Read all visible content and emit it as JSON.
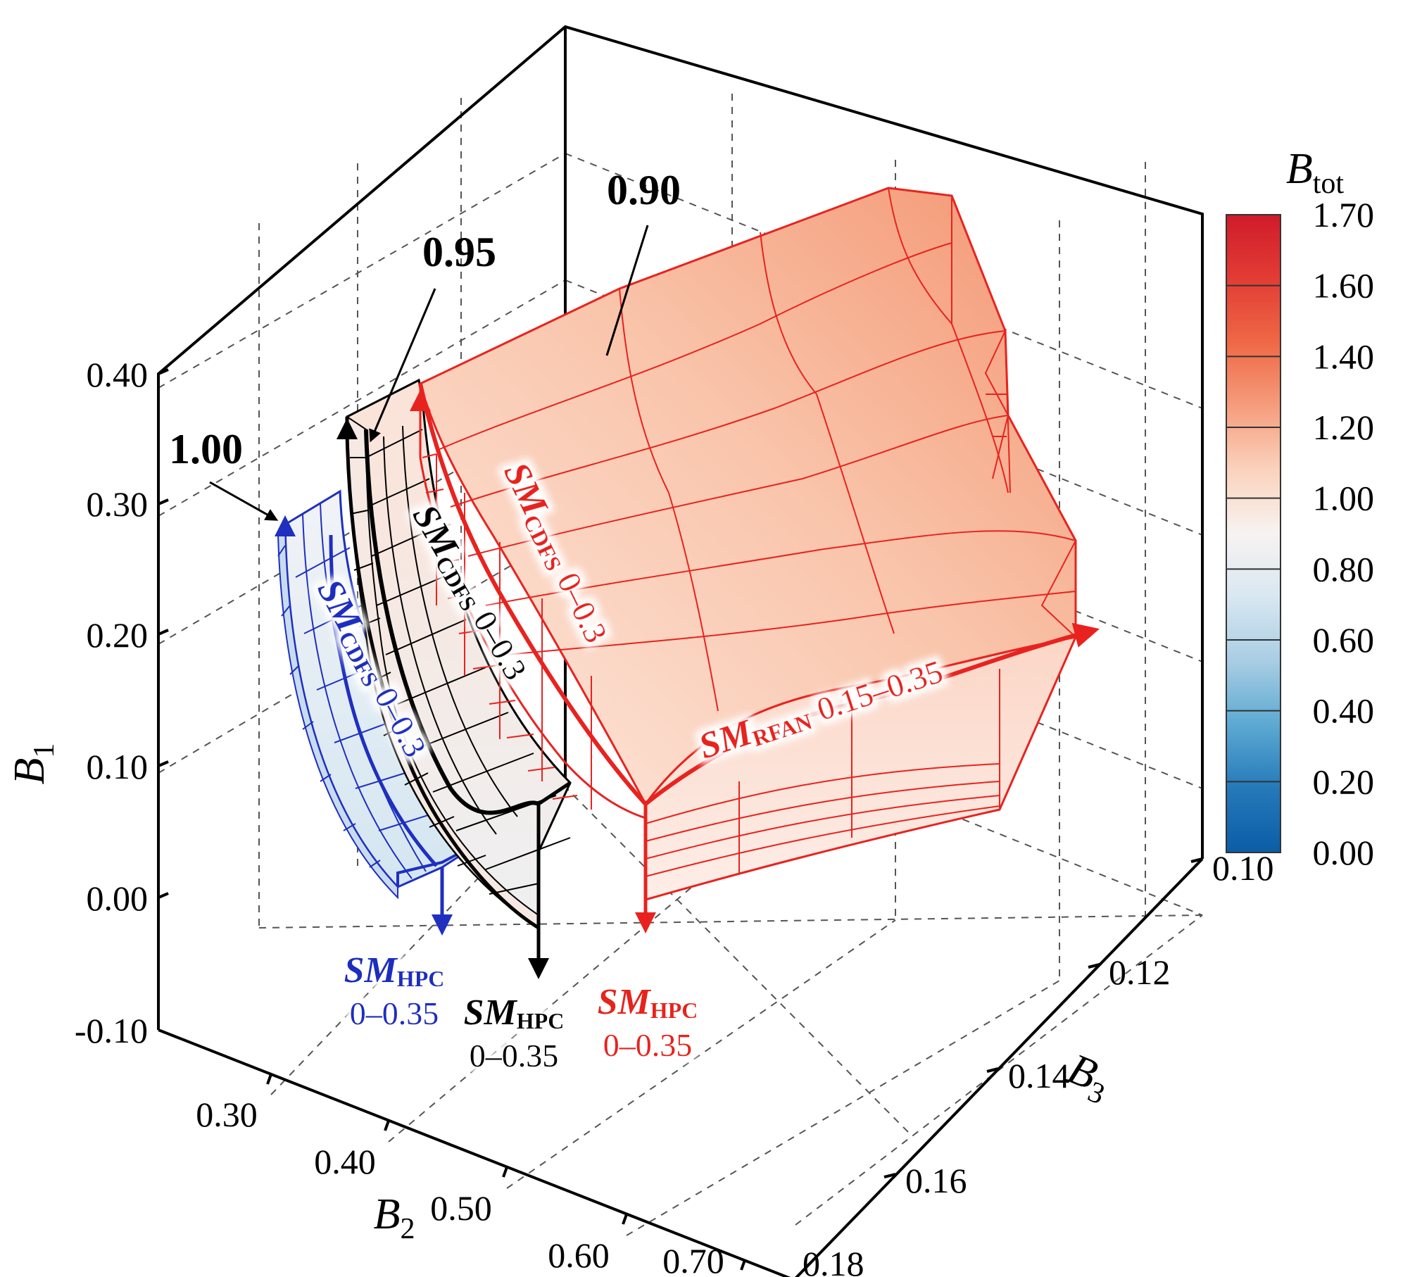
{
  "chart_data": {
    "type": "surface3d",
    "title": "",
    "axes": {
      "x": {
        "label": "B",
        "subscript": "2",
        "ticks": [
          "0.30",
          "0.40",
          "0.50",
          "0.60",
          "0.70"
        ]
      },
      "y": {
        "label": "B",
        "subscript": "3",
        "ticks": [
          "0.10",
          "0.12",
          "0.14",
          "0.16",
          "0.18"
        ]
      },
      "z": {
        "label": "B",
        "subscript": "1",
        "ticks": [
          "-0.10",
          "0.00",
          "0.10",
          "0.20",
          "0.30",
          "0.40"
        ]
      }
    },
    "colorbar": {
      "label": "B",
      "subscript": "tot",
      "ticks": [
        "1.70",
        "1.60",
        "1.40",
        "1.20",
        "1.00",
        "0.80",
        "0.60",
        "0.40",
        "0.20",
        "0.00"
      ],
      "colors": [
        "#d01b2a",
        "#e23c35",
        "#ef6845",
        "#f59d7d",
        "#fbd2bd",
        "#f7f3f1",
        "#d8e7f1",
        "#a9cde4",
        "#5ca9d2",
        "#2579b9",
        "#0a5da6"
      ]
    },
    "surface_levels": [
      "1.00",
      "0.95",
      "0.90"
    ],
    "annotations": {
      "blue_cdfs": {
        "sm": "SM",
        "sub": "CDFS",
        "range": "0–0.3",
        "color": "#1f2fbf"
      },
      "black_cdfs": {
        "sm": "SM",
        "sub": "CDFS",
        "range": "0–0.3",
        "color": "#000000"
      },
      "red_cdfs": {
        "sm": "SM",
        "sub": "CDFS",
        "range": "0–0.3",
        "color": "#e8231f"
      },
      "red_rfan": {
        "sm": "SM",
        "sub": "RFAN",
        "range": "0.15–0.35",
        "color": "#e8231f"
      },
      "blue_hpc": {
        "sm": "SM",
        "sub": "HPC",
        "range": "0–0.35",
        "color": "#1f2fbf"
      },
      "black_hpc": {
        "sm": "SM",
        "sub": "HPC",
        "range": "0–0.35",
        "color": "#000000"
      },
      "red_hpc": {
        "sm": "SM",
        "sub": "HPC",
        "range": "0–0.35",
        "color": "#e8231f"
      }
    }
  }
}
